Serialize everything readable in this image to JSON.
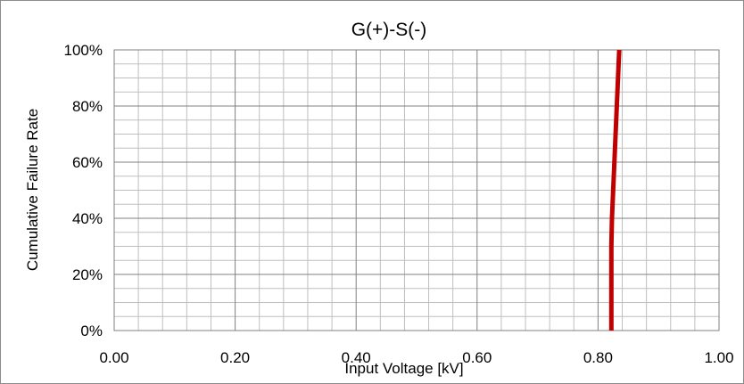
{
  "chart_data": {
    "type": "line",
    "title": "G(+)-S(-)",
    "xlabel": "Input Voltage [kV]",
    "ylabel": "Cumulative Failure Rate",
    "xlim": [
      0,
      1
    ],
    "ylim": [
      0,
      1
    ],
    "x_ticks": [
      0,
      0.2,
      0.4,
      0.6,
      0.8,
      1.0
    ],
    "x_tick_labels": [
      "0.00",
      "0.20",
      "0.40",
      "0.60",
      "0.80",
      "1.00"
    ],
    "y_ticks": [
      0,
      0.2,
      0.4,
      0.6,
      0.8,
      1.0
    ],
    "y_tick_labels": [
      "0%",
      "20%",
      "40%",
      "60%",
      "80%",
      "100%"
    ],
    "grid": true,
    "legend": "none",
    "series": [
      {
        "color": "#c00000",
        "points": [
          {
            "x": 0.822,
            "y": 0.0
          },
          {
            "x": 0.822,
            "y": 0.1
          },
          {
            "x": 0.822,
            "y": 0.2
          },
          {
            "x": 0.822,
            "y": 0.3
          },
          {
            "x": 0.823,
            "y": 0.4
          },
          {
            "x": 0.825,
            "y": 0.5
          },
          {
            "x": 0.827,
            "y": 0.6
          },
          {
            "x": 0.829,
            "y": 0.7
          },
          {
            "x": 0.831,
            "y": 0.8
          },
          {
            "x": 0.833,
            "y": 0.9
          },
          {
            "x": 0.835,
            "y": 1.0
          }
        ]
      }
    ]
  }
}
